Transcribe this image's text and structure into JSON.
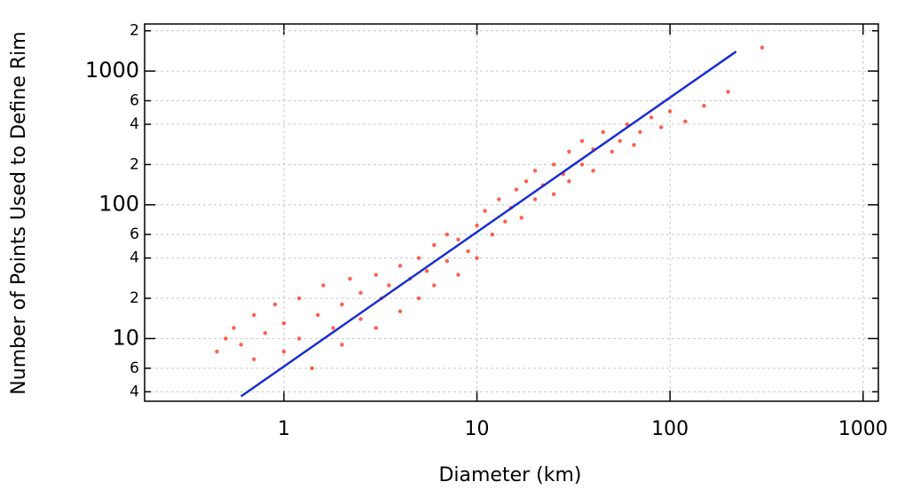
{
  "chart_data": {
    "type": "scatter",
    "x_label": "Diameter (km)",
    "y_label": "Number of Points Used to Define Rim",
    "xscale": "log",
    "yscale": "log",
    "grid": true,
    "xlim": [
      0.19,
      1200
    ],
    "ylim": [
      3.4,
      2250
    ],
    "xticks": [
      1,
      10,
      100,
      1000
    ],
    "yticks": [
      4,
      6,
      10,
      {
        "value": 20,
        "label": "2"
      },
      {
        "value": 40,
        "label": "4"
      },
      {
        "value": 60,
        "label": "6"
      },
      100,
      {
        "value": 200,
        "label": "2"
      },
      {
        "value": 400,
        "label": "4"
      },
      {
        "value": 600,
        "label": "6"
      },
      1000,
      {
        "value": 2000,
        "label": "2"
      }
    ],
    "points": {
      "color": "#ff2a10",
      "x": [
        0.45,
        0.5,
        0.55,
        0.6,
        0.7,
        0.7,
        0.8,
        0.9,
        1.0,
        1.0,
        1.2,
        1.2,
        1.4,
        1.5,
        1.6,
        1.8,
        2,
        2,
        2.2,
        2.5,
        2.5,
        3,
        3,
        3.2,
        3.5,
        4,
        4,
        4.5,
        5,
        5,
        5.5,
        6,
        6,
        7,
        7,
        8,
        8,
        9,
        10,
        10,
        11,
        12,
        13,
        14,
        15,
        16,
        17,
        18,
        20,
        20,
        22,
        25,
        25,
        28,
        30,
        30,
        35,
        35,
        40,
        40,
        45,
        50,
        55,
        60,
        65,
        70,
        80,
        90,
        100,
        120,
        150,
        200,
        300
      ],
      "y": [
        8,
        10,
        12,
        9,
        7,
        15,
        11,
        18,
        8,
        13,
        20,
        10,
        6,
        15,
        25,
        12,
        18,
        9,
        28,
        14,
        22,
        12,
        30,
        20,
        25,
        16,
        35,
        28,
        20,
        40,
        32,
        25,
        50,
        38,
        60,
        30,
        55,
        45,
        70,
        40,
        90,
        60,
        110,
        75,
        95,
        130,
        80,
        150,
        110,
        180,
        140,
        200,
        120,
        170,
        250,
        150,
        200,
        300,
        180,
        260,
        350,
        250,
        300,
        400,
        280,
        350,
        450,
        380,
        500,
        420,
        550,
        700,
        1500
      ]
    },
    "fit_line": {
      "color": "#1a2ed0",
      "x": [
        0.6,
        220
      ],
      "y": [
        3.7,
        1400
      ]
    }
  }
}
